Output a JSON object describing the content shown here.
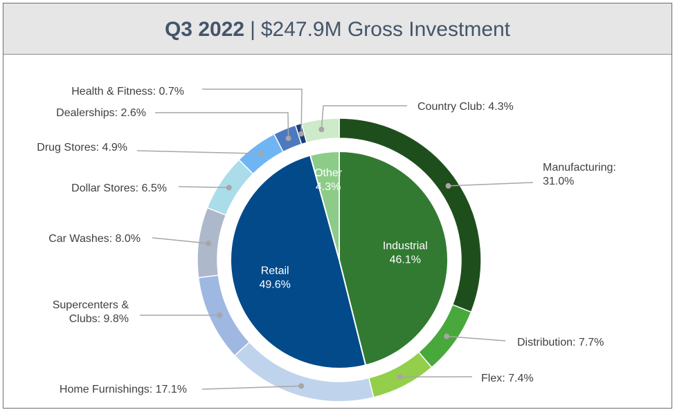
{
  "header": {
    "period": "Q3 2022",
    "separator": "|",
    "subtitle": "$247.9M Gross Investment"
  },
  "chart_data": {
    "type": "pie",
    "title": "Q3 2022 | $247.9M Gross Investment",
    "inner": {
      "categories": [
        "Industrial",
        "Retail",
        "Other"
      ],
      "values": [
        46.1,
        49.6,
        4.3
      ],
      "labels": [
        "46.1%",
        "49.6%",
        "4.3%"
      ],
      "colors": [
        "#327a32",
        "#034a8a",
        "#8ccc88"
      ]
    },
    "outer": {
      "categories": [
        "Manufacturing",
        "Distribution",
        "Flex",
        "Home Furnishings",
        "Supercenters & Clubs",
        "Car Washes",
        "Dollar Stores",
        "Drug Stores",
        "Dealerships",
        "Health & Fitness",
        "Country Club"
      ],
      "values": [
        31.0,
        7.7,
        7.4,
        17.1,
        9.8,
        8.0,
        6.5,
        4.9,
        2.6,
        0.7,
        4.3
      ],
      "labels": [
        [
          "Manufacturing:",
          "31.0%"
        ],
        [
          "Distribution: 7.7%"
        ],
        [
          "Flex: 7.4%"
        ],
        [
          "Home Furnishings: 17.1%"
        ],
        [
          "Supercenters &",
          "Clubs: 9.8%"
        ],
        [
          "Car Washes: 8.0%"
        ],
        [
          "Dollar Stores: 6.5%"
        ],
        [
          "Drug Stores: 4.9%"
        ],
        [
          "Dealerships: 2.6%"
        ],
        [
          "Health & Fitness: 0.7%"
        ],
        [
          "Country Club: 4.3%"
        ]
      ],
      "colors": [
        "#1f4e1d",
        "#48a83c",
        "#93cf4a",
        "#c0d3ec",
        "#9eb8e2",
        "#adb8ca",
        "#aadcea",
        "#6fb5f4",
        "#4c79bf",
        "#1b3f7a",
        "#cdeac9"
      ]
    }
  }
}
